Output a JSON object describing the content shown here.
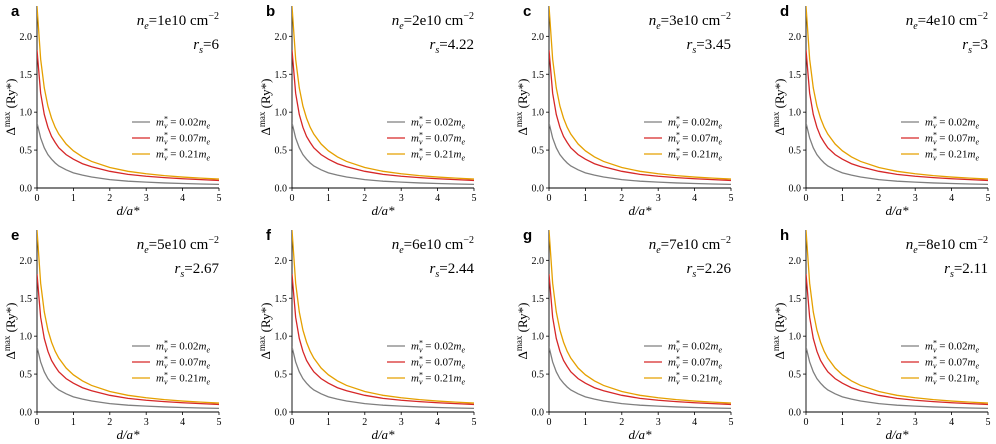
{
  "chart_data": {
    "type": "line",
    "x_range": [
      0,
      5
    ],
    "y_range": [
      0,
      2.4
    ],
    "xticks": [
      "0",
      "1",
      "2",
      "3",
      "4",
      "5"
    ],
    "yticks": [
      "0.0",
      "0.5",
      "1.0",
      "1.5",
      "2.0"
    ],
    "xlabel": "d/a*",
    "ylabel": "Δmax (Ry*)",
    "ylabel_base": "Δ",
    "ylabel_sup": "max",
    "ylabel_unit": " (Ry*)",
    "x": [
      0,
      0.1,
      0.2,
      0.3,
      0.4,
      0.5,
      0.6,
      0.8,
      1.0,
      1.25,
      1.5,
      2.0,
      2.5,
      3.0,
      3.5,
      4.0,
      4.5,
      5.0
    ],
    "series": [
      {
        "name": "m_v* = 0.02m_e",
        "legend": {
          "base": "m",
          "sub": "v",
          "sup": "*",
          "rest": " = 0.02",
          "unit": "m",
          "unit_sub": "e"
        },
        "color": "#7f7f7f",
        "values": [
          0.86,
          0.66,
          0.53,
          0.44,
          0.38,
          0.33,
          0.29,
          0.24,
          0.2,
          0.17,
          0.145,
          0.11,
          0.09,
          0.077,
          0.067,
          0.059,
          0.053,
          0.048
        ]
      },
      {
        "name": "m_v* = 0.07m_e",
        "legend": {
          "base": "m",
          "sub": "v",
          "sup": "*",
          "rest": " = 0.07",
          "unit": "m",
          "unit_sub": "e"
        },
        "color": "#d62728",
        "values": [
          1.82,
          1.25,
          0.97,
          0.8,
          0.68,
          0.6,
          0.53,
          0.44,
          0.38,
          0.32,
          0.28,
          0.22,
          0.18,
          0.155,
          0.137,
          0.122,
          0.11,
          0.1
        ]
      },
      {
        "name": "m_v* = 0.21m_e",
        "legend": {
          "base": "m",
          "sub": "v",
          "sup": "*",
          "rest": " = 0.21",
          "unit": "m",
          "unit_sub": "e"
        },
        "color": "#e5a000",
        "values": [
          2.4,
          1.7,
          1.32,
          1.08,
          0.92,
          0.8,
          0.71,
          0.58,
          0.49,
          0.41,
          0.35,
          0.27,
          0.22,
          0.188,
          0.163,
          0.144,
          0.13,
          0.118
        ]
      }
    ],
    "panels": [
      {
        "letter": "a",
        "ne": "=1e10 cm",
        "rs": "=6"
      },
      {
        "letter": "b",
        "ne": "=2e10 cm",
        "rs": "=4.22"
      },
      {
        "letter": "c",
        "ne": "=3e10 cm",
        "rs": "=3.45"
      },
      {
        "letter": "d",
        "ne": "=4e10 cm",
        "rs": "=3"
      },
      {
        "letter": "e",
        "ne": "=5e10 cm",
        "rs": "=2.67"
      },
      {
        "letter": "f",
        "ne": "=6e10 cm",
        "rs": "=2.44"
      },
      {
        "letter": "g",
        "ne": "=7e10 cm",
        "rs": "=2.26"
      },
      {
        "letter": "h",
        "ne": "=8e10 cm",
        "rs": "=2.11"
      }
    ],
    "ne_symbol": "n",
    "ne_sub": "e",
    "ne_exp": "−2",
    "rs_symbol": "r",
    "rs_sub": "s"
  }
}
